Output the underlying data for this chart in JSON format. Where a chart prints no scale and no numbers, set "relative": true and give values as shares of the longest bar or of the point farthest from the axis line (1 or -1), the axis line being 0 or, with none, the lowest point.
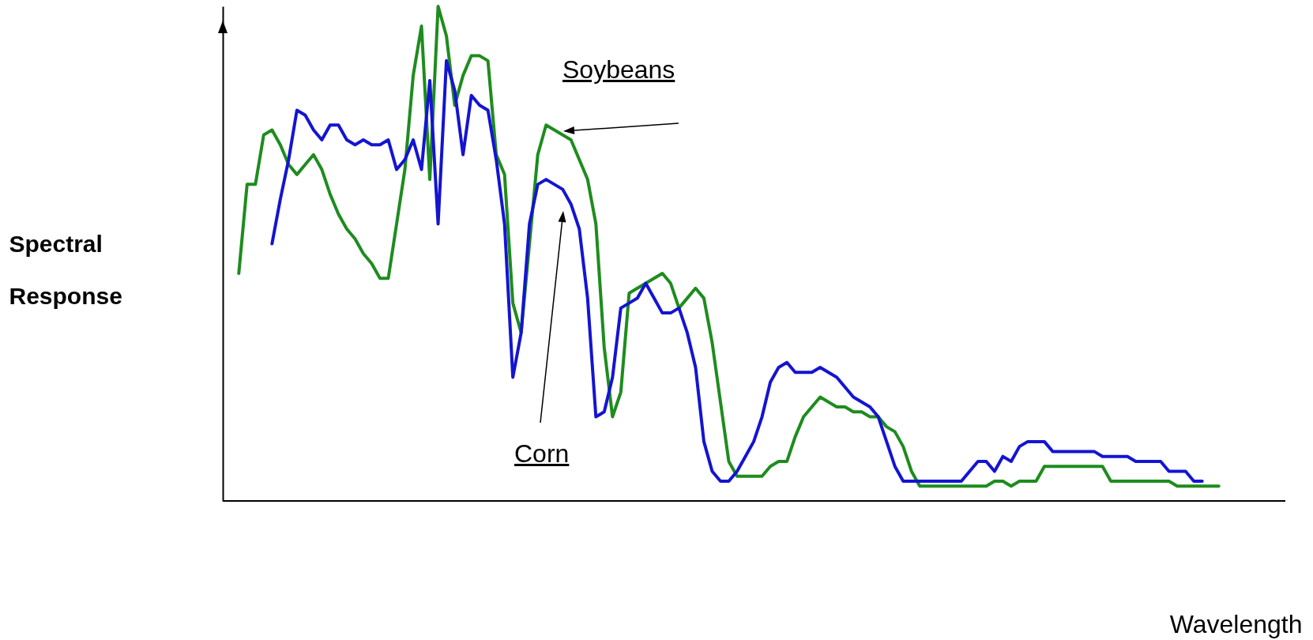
{
  "chart_data": {
    "type": "line",
    "relative": true,
    "ylabel": "Spectral Response",
    "xlabel": "Wavelength",
    "tick_labels": false,
    "categories": [
      null,
      null,
      null,
      null,
      null,
      null,
      null,
      null,
      null,
      null,
      null,
      null,
      null,
      null,
      null,
      null,
      null,
      null,
      null,
      null,
      null,
      null,
      null,
      null,
      null,
      null,
      null,
      null,
      null,
      null,
      null,
      null,
      null,
      null,
      null,
      null,
      null,
      null,
      null,
      null,
      null,
      null,
      null,
      null,
      null,
      null,
      null,
      null,
      null,
      null,
      null,
      null,
      null,
      null,
      null,
      null,
      null,
      null,
      null,
      null,
      null,
      null,
      null,
      null,
      null,
      null,
      null,
      null,
      null,
      null,
      null,
      null,
      null,
      null,
      null,
      null,
      null,
      null,
      null,
      null,
      null,
      null,
      null,
      null,
      null,
      null,
      null,
      null,
      null,
      null,
      null,
      null,
      null,
      null,
      null,
      null,
      null,
      null,
      null,
      null,
      null,
      null,
      null,
      null,
      null,
      null,
      null,
      null,
      null,
      null,
      null,
      null,
      null,
      null,
      null,
      null,
      null,
      null,
      null
    ],
    "series": [
      {
        "name": "Soybeans",
        "color": "#1e8c1e",
        "values": [
          0.46,
          0.64,
          0.64,
          0.74,
          0.75,
          0.72,
          0.68,
          0.66,
          0.68,
          0.7,
          0.67,
          0.62,
          0.58,
          0.55,
          0.53,
          0.5,
          0.48,
          0.45,
          0.45,
          0.56,
          0.67,
          0.86,
          0.96,
          0.65,
          1.0,
          0.94,
          0.8,
          0.86,
          0.9,
          0.9,
          0.89,
          0.7,
          0.66,
          0.4,
          0.34,
          0.52,
          0.7,
          0.76,
          0.75,
          0.74,
          0.73,
          0.69,
          0.65,
          0.56,
          0.31,
          0.17,
          0.22,
          0.42,
          0.43,
          0.44,
          0.45,
          0.46,
          0.44,
          0.39,
          0.41,
          0.43,
          0.41,
          0.32,
          0.2,
          0.08,
          0.05,
          0.05,
          0.05,
          0.05,
          0.07,
          0.08,
          0.08,
          0.13,
          0.17,
          0.19,
          0.21,
          0.2,
          0.19,
          0.19,
          0.18,
          0.18,
          0.17,
          0.17,
          0.15,
          0.14,
          0.11,
          0.06,
          0.03,
          0.03,
          0.03,
          0.03,
          0.03,
          0.03,
          0.03,
          0.03,
          0.03,
          0.04,
          0.04,
          0.03,
          0.04,
          0.04,
          0.04,
          0.07,
          0.07,
          0.07,
          0.07,
          0.07,
          0.07,
          0.07,
          0.07,
          0.04,
          0.04,
          0.04,
          0.04,
          0.04,
          0.04,
          0.04,
          0.04,
          0.03,
          0.03,
          0.03,
          0.03,
          0.03,
          0.03
        ]
      },
      {
        "name": "Corn",
        "color": "#1414d2",
        "values": [
          null,
          null,
          null,
          null,
          0.52,
          0.61,
          0.69,
          0.79,
          0.78,
          0.75,
          0.73,
          0.76,
          0.76,
          0.73,
          0.72,
          0.73,
          0.72,
          0.72,
          0.73,
          0.67,
          0.69,
          0.73,
          0.67,
          0.85,
          0.56,
          0.89,
          0.83,
          0.7,
          0.82,
          0.8,
          0.79,
          0.69,
          0.56,
          0.25,
          0.34,
          0.56,
          0.64,
          0.65,
          0.64,
          0.63,
          0.6,
          0.55,
          0.41,
          0.17,
          0.18,
          0.25,
          0.39,
          0.4,
          0.41,
          0.44,
          0.41,
          0.38,
          0.38,
          0.39,
          0.34,
          0.27,
          0.12,
          0.06,
          0.04,
          0.04,
          0.06,
          0.09,
          0.12,
          0.17,
          0.24,
          0.27,
          0.28,
          0.26,
          0.26,
          0.26,
          0.27,
          0.26,
          0.25,
          0.23,
          0.21,
          0.2,
          0.19,
          0.17,
          0.12,
          0.07,
          0.04,
          0.04,
          0.04,
          0.04,
          0.04,
          0.04,
          0.04,
          0.04,
          0.06,
          0.08,
          0.08,
          0.06,
          0.09,
          0.08,
          0.11,
          0.12,
          0.12,
          0.12,
          0.1,
          0.1,
          0.1,
          0.1,
          0.1,
          0.1,
          0.09,
          0.09,
          0.09,
          0.09,
          0.08,
          0.08,
          0.08,
          0.08,
          0.06,
          0.06,
          0.06,
          0.04,
          0.04,
          null,
          null
        ]
      }
    ]
  }
}
